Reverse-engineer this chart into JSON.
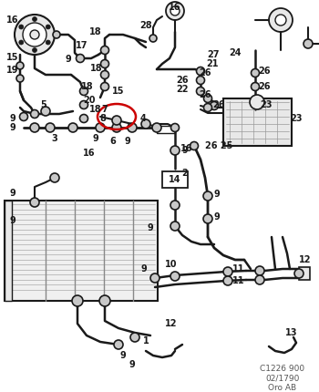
{
  "bg_color": "#ffffff",
  "line_color": "#1a1a1a",
  "red_color": "#cc0000",
  "gray_fill": "#c8c8c8",
  "light_gray": "#e8e8e8",
  "watermark": "C1226 900\n02/1790\nOro AB",
  "fig_width": 3.5,
  "fig_height": 4.3,
  "dpi": 100
}
